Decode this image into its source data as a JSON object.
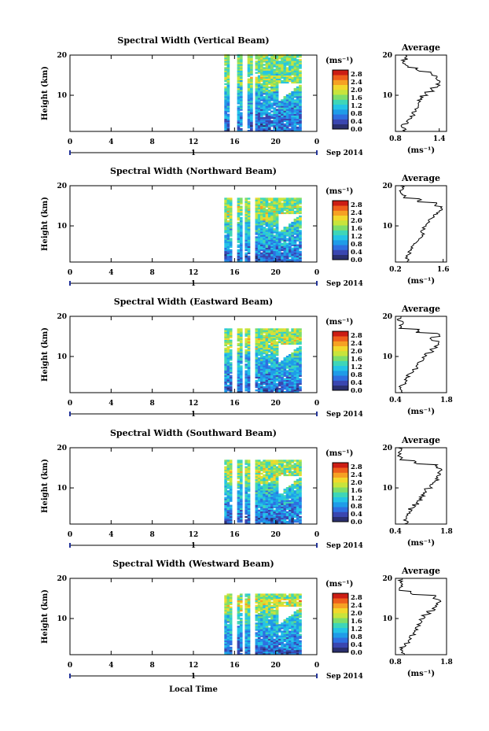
{
  "figure": {
    "date_label": "Sep 2014",
    "day_label": "1",
    "xlabel": "Local Time",
    "ylabel": "Height (km)",
    "unit_label": "(ms⁻¹)",
    "avg_title": "Average",
    "avg_xlabel": "(ms⁻¹)",
    "colorbar_ticks": [
      "0.0",
      "0.4",
      "0.8",
      "1.2",
      "1.6",
      "2.0",
      "2.4",
      "2.8"
    ],
    "time_ticks": [
      "0",
      "4",
      "8",
      "12",
      "16",
      "20",
      "0"
    ],
    "height_ticks": [
      "20",
      "10"
    ],
    "colorbar_colors": [
      "#2a2f6e",
      "#3a46b0",
      "#2f6fe0",
      "#1f9ce8",
      "#24c4e6",
      "#3ed6b8",
      "#7fde6a",
      "#c8e43c",
      "#f2d82c",
      "#f6a123",
      "#ee5f1c",
      "#cc1d14"
    ]
  },
  "chart_data": [
    {
      "type": "heatmap",
      "title": "Spectral Width (Vertical Beam)",
      "xlabel": "Local Time",
      "ylabel": "Height (km)",
      "xlim": [
        0,
        24
      ],
      "ylim": [
        1,
        20
      ],
      "clim": [
        0.0,
        3.0
      ],
      "x_range_with_data": [
        15,
        22.5
      ],
      "gaps": [
        [
          15.5,
          16.2
        ],
        [
          16.7,
          17.1
        ],
        [
          17.6,
          18.0
        ]
      ],
      "top_km": 20,
      "average": {
        "xlim": [
          0.8,
          1.5
        ],
        "xticks": [
          "0.8",
          "1.4"
        ],
        "profile": [
          [
            0.92,
            1
          ],
          [
            0.9,
            2
          ],
          [
            0.95,
            3
          ],
          [
            1.0,
            4
          ],
          [
            1.05,
            5
          ],
          [
            1.08,
            6
          ],
          [
            1.1,
            7
          ],
          [
            1.12,
            8
          ],
          [
            1.15,
            9
          ],
          [
            1.22,
            10
          ],
          [
            1.3,
            11
          ],
          [
            1.38,
            12
          ],
          [
            1.4,
            13
          ],
          [
            1.35,
            14
          ],
          [
            1.3,
            15
          ],
          [
            1.1,
            16
          ],
          [
            0.95,
            17
          ],
          [
            0.9,
            18
          ],
          [
            0.95,
            19
          ],
          [
            0.92,
            20
          ]
        ]
      }
    },
    {
      "type": "heatmap",
      "title": "Spectral Width (Northward Beam)",
      "xlabel": "Local Time",
      "ylabel": "Height (km)",
      "xlim": [
        0,
        24
      ],
      "ylim": [
        1,
        20
      ],
      "clim": [
        0.0,
        3.0
      ],
      "x_range_with_data": [
        15,
        22.5
      ],
      "gaps": [
        [
          15.6,
          16.2
        ],
        [
          16.7,
          17.0
        ],
        [
          17.5,
          17.9
        ]
      ],
      "top_km": 17,
      "average": {
        "xlim": [
          0.2,
          1.7
        ],
        "xticks": [
          "0.2",
          "1.6"
        ],
        "profile": [
          [
            0.55,
            1
          ],
          [
            0.52,
            2
          ],
          [
            0.6,
            3
          ],
          [
            0.65,
            4
          ],
          [
            0.75,
            5
          ],
          [
            0.85,
            6
          ],
          [
            0.95,
            7
          ],
          [
            1.0,
            8
          ],
          [
            1.05,
            9
          ],
          [
            1.1,
            10
          ],
          [
            1.2,
            11
          ],
          [
            1.3,
            12
          ],
          [
            1.45,
            13
          ],
          [
            1.55,
            14
          ],
          [
            1.4,
            15
          ],
          [
            0.9,
            16
          ],
          [
            0.45,
            17
          ],
          [
            0.35,
            18
          ],
          [
            0.4,
            19
          ],
          [
            0.35,
            20
          ]
        ]
      }
    },
    {
      "type": "heatmap",
      "title": "Spectral Width (Eastward Beam)",
      "xlabel": "Local Time",
      "ylabel": "Height (km)",
      "xlim": [
        0,
        24
      ],
      "ylim": [
        1,
        20
      ],
      "clim": [
        0.0,
        3.0
      ],
      "x_range_with_data": [
        15,
        22.5
      ],
      "gaps": [
        [
          15.6,
          16.1
        ],
        [
          16.6,
          17.0
        ],
        [
          17.5,
          17.8
        ]
      ],
      "top_km": 17,
      "average": {
        "xlim": [
          0.4,
          1.8
        ],
        "xticks": [
          "0.4",
          "1.8"
        ],
        "profile": [
          [
            0.6,
            1
          ],
          [
            0.55,
            2
          ],
          [
            0.65,
            3
          ],
          [
            0.7,
            4
          ],
          [
            0.75,
            5
          ],
          [
            0.85,
            6
          ],
          [
            1.0,
            7
          ],
          [
            1.05,
            8
          ],
          [
            1.15,
            9
          ],
          [
            1.25,
            10
          ],
          [
            1.4,
            11
          ],
          [
            1.5,
            12
          ],
          [
            1.6,
            13
          ],
          [
            1.35,
            14
          ],
          [
            1.6,
            15
          ],
          [
            1.0,
            16
          ],
          [
            0.55,
            17
          ],
          [
            0.6,
            18
          ],
          [
            0.5,
            19
          ],
          [
            0.5,
            20
          ]
        ]
      }
    },
    {
      "type": "heatmap",
      "title": "Spectral Width (Southward Beam)",
      "xlabel": "Local Time",
      "ylabel": "Height (km)",
      "xlim": [
        0,
        24
      ],
      "ylim": [
        1,
        20
      ],
      "clim": [
        0.0,
        3.0
      ],
      "x_range_with_data": [
        15,
        22.5
      ],
      "gaps": [
        [
          15.6,
          16.1
        ],
        [
          16.6,
          17.0
        ],
        [
          17.5,
          17.8
        ]
      ],
      "top_km": 17,
      "average": {
        "xlim": [
          0.4,
          1.8
        ],
        "xticks": [
          "0.4",
          "1.8"
        ],
        "profile": [
          [
            0.7,
            1
          ],
          [
            0.65,
            2
          ],
          [
            0.75,
            3
          ],
          [
            0.8,
            4
          ],
          [
            0.9,
            5
          ],
          [
            1.0,
            6
          ],
          [
            1.1,
            7
          ],
          [
            1.15,
            8
          ],
          [
            1.25,
            9
          ],
          [
            1.35,
            10
          ],
          [
            1.45,
            11
          ],
          [
            1.55,
            12
          ],
          [
            1.6,
            13
          ],
          [
            1.65,
            14
          ],
          [
            1.5,
            15
          ],
          [
            0.95,
            16
          ],
          [
            0.55,
            17
          ],
          [
            0.5,
            18
          ],
          [
            0.55,
            19
          ],
          [
            0.5,
            20
          ]
        ]
      }
    },
    {
      "type": "heatmap",
      "title": "Spectral Width (Westward Beam)",
      "xlabel": "Local Time",
      "ylabel": "Height (km)",
      "xlim": [
        0,
        24
      ],
      "ylim": [
        1,
        20
      ],
      "clim": [
        0.0,
        3.0
      ],
      "x_range_with_data": [
        15,
        22.5
      ],
      "gaps": [
        [
          15.6,
          16.1
        ],
        [
          16.6,
          17.0
        ],
        [
          17.5,
          17.8
        ]
      ],
      "top_km": 16,
      "average": {
        "xlim": [
          0.8,
          1.8
        ],
        "xticks": [
          "0.8",
          "1.8"
        ],
        "profile": [
          [
            0.95,
            1
          ],
          [
            0.92,
            2
          ],
          [
            1.0,
            3
          ],
          [
            1.05,
            4
          ],
          [
            1.1,
            5
          ],
          [
            1.15,
            6
          ],
          [
            1.2,
            7
          ],
          [
            1.25,
            8
          ],
          [
            1.3,
            9
          ],
          [
            1.35,
            10
          ],
          [
            1.45,
            11
          ],
          [
            1.55,
            12
          ],
          [
            1.6,
            13
          ],
          [
            1.65,
            14
          ],
          [
            1.55,
            15
          ],
          [
            1.1,
            16
          ],
          [
            0.9,
            17
          ],
          [
            0.95,
            18
          ],
          [
            0.9,
            19
          ],
          [
            0.95,
            20
          ]
        ]
      }
    }
  ]
}
